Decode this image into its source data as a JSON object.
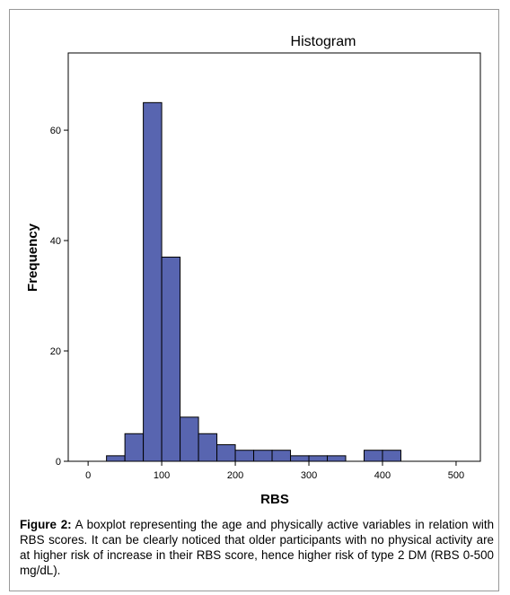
{
  "chart_data": {
    "type": "histogram",
    "title": "Histogram",
    "x_label": "RBS",
    "y_label": "Frequency",
    "bins": [
      25,
      50,
      75,
      100,
      125,
      150,
      175,
      200,
      225,
      250,
      275,
      300,
      325,
      350,
      375,
      400,
      425
    ],
    "values": [
      1,
      5,
      65,
      37,
      8,
      5,
      3,
      2,
      2,
      2,
      1,
      1,
      1,
      0,
      2,
      2
    ],
    "color": "#5865b0",
    "xlim": [
      -27,
      533
    ],
    "xticks": [
      0,
      100,
      200,
      300,
      400,
      500
    ],
    "ylim": [
      0,
      74
    ],
    "yticks": [
      0,
      20,
      40,
      60
    ]
  },
  "caption": {
    "label": "Figure 2:",
    "text": "A boxplot representing the age and physically active variables in relation with RBS scores. It can be clearly noticed that older participants with no physical activity are at higher risk of increase in their RBS score, hence higher risk of type 2 DM (RBS 0-500 mg/dL)."
  }
}
